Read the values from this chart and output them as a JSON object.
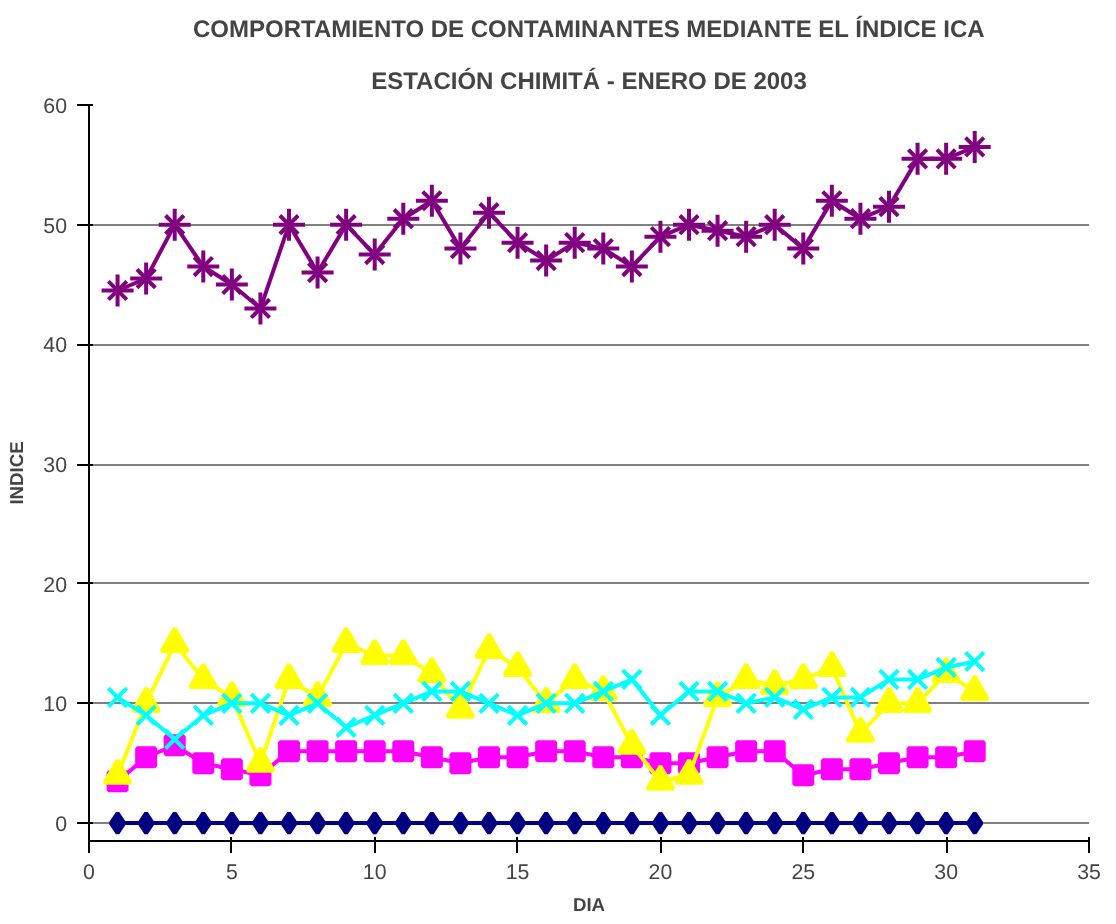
{
  "chart_data": {
    "type": "line",
    "title": "COMPORTAMIENTO DE CONTAMINANTES MEDIANTE EL ÍNDICE ICA",
    "subtitle": "ESTACIÓN CHIMITÁ - ENERO DE 2003",
    "xlabel": "DIA",
    "ylabel": "INDICE",
    "x": [
      1,
      2,
      3,
      4,
      5,
      6,
      7,
      8,
      9,
      10,
      11,
      12,
      13,
      14,
      15,
      16,
      17,
      18,
      19,
      20,
      21,
      22,
      23,
      24,
      25,
      26,
      27,
      28,
      29,
      30,
      31
    ],
    "series": [
      {
        "color": "#800080",
        "marker": "cross",
        "values": [
          44.5,
          45.5,
          50,
          46.5,
          45,
          43,
          50,
          46,
          50,
          47.5,
          50.5,
          52,
          48,
          51,
          48.5,
          47,
          48.5,
          48,
          46.5,
          49,
          50,
          49.5,
          49,
          50,
          48,
          52,
          50.5,
          51.5,
          55.5,
          55.5,
          56.5
        ]
      },
      {
        "color": "#ff00ff",
        "marker": "square",
        "values": [
          3.5,
          5.5,
          6.5,
          5,
          4.5,
          4,
          6,
          6,
          6,
          6,
          6,
          5.5,
          5,
          5.5,
          5.5,
          6,
          6,
          5.5,
          5.5,
          5,
          5,
          5.5,
          6,
          6,
          4,
          4.5,
          4.5,
          5,
          5.5,
          5.5,
          6
        ]
      },
      {
        "color": "#ffff00",
        "marker": "triangle",
        "values": [
          4,
          10,
          15,
          12,
          10.5,
          5,
          12,
          10.5,
          15,
          14,
          14,
          12.5,
          9.5,
          14.5,
          13,
          10,
          12,
          11,
          6.5,
          3.5,
          4,
          10.5,
          12,
          11.5,
          12,
          13,
          7.5,
          10,
          10,
          12.5,
          11
        ]
      },
      {
        "color": "#00ffff",
        "marker": "cross",
        "values": [
          10.5,
          9,
          7,
          9,
          10,
          10,
          9,
          10,
          8,
          9,
          10,
          11,
          11,
          10,
          9,
          10,
          10,
          11,
          12,
          9,
          11,
          11,
          10,
          10.5,
          9.5,
          10.5,
          10.5,
          12,
          12,
          13,
          13.5
        ]
      },
      {
        "color": "#000080",
        "marker": "diamond",
        "values": [
          0,
          0,
          0,
          0,
          0,
          0,
          0,
          0,
          0,
          0,
          0,
          0,
          0,
          0,
          0,
          0,
          0,
          0,
          0,
          0,
          0,
          0,
          0,
          0,
          0,
          0,
          0,
          0,
          0,
          0,
          0
        ]
      }
    ],
    "xlim": [
      0,
      35
    ],
    "xticks": [
      0,
      5,
      10,
      15,
      20,
      25,
      30,
      35
    ],
    "ylim": [
      0,
      60
    ],
    "yticks": [
      0,
      10,
      20,
      30,
      40,
      50,
      60
    ],
    "grid": "y"
  }
}
